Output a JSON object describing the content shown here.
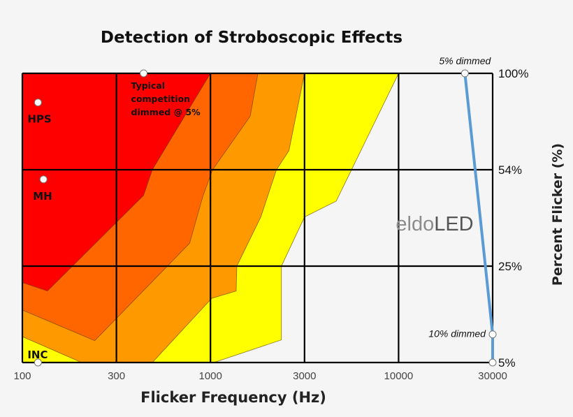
{
  "chart_data": {
    "type": "area",
    "title": "Detection of Stroboscopic Effects",
    "xlabel": "Flicker Frequency (Hz)",
    "ylabel": "Percent Flicker (%)",
    "x_scale": "log",
    "x_ticks": [
      100,
      300,
      1000,
      3000,
      10000,
      30000
    ],
    "x_tick_labels": [
      "100",
      "300",
      "1000",
      "3000",
      "10000",
      "30000"
    ],
    "y_ticks": [
      100,
      54,
      25,
      5
    ],
    "y_tick_labels": [
      "100%",
      "54%",
      "25%",
      "5%"
    ],
    "y_axis_side": "right",
    "xlim": [
      100,
      30000
    ],
    "ylim": [
      5,
      100
    ],
    "grid": true,
    "regions": [
      {
        "color": "#ffff00",
        "points": [
          [
            100,
            100
          ],
          [
            10000,
            100
          ],
          [
            4500,
            42
          ],
          [
            3000,
            37
          ],
          [
            2290,
            25
          ],
          [
            2290,
            7.3
          ],
          [
            1040,
            5
          ],
          [
            100,
            5
          ]
        ]
      },
      {
        "color": "#ff9900",
        "points": [
          [
            100,
            100
          ],
          [
            3000,
            100
          ],
          [
            2500,
            61
          ],
          [
            2160,
            54
          ],
          [
            1800,
            37
          ],
          [
            1360,
            25
          ],
          [
            1350,
            16.5
          ],
          [
            1015,
            14.6
          ],
          [
            475,
            5
          ],
          [
            200,
            5
          ],
          [
            100,
            7.7
          ]
        ]
      },
      {
        "color": "#ff6600",
        "points": [
          [
            100,
            100
          ],
          [
            1740,
            100
          ],
          [
            1590,
            76
          ],
          [
            1025,
            54
          ],
          [
            910,
            44
          ],
          [
            765,
            30
          ],
          [
            233,
            7.2
          ],
          [
            100,
            12
          ]
        ]
      },
      {
        "color": "#ff0000",
        "points": [
          [
            100,
            100
          ],
          [
            1000,
            100
          ],
          [
            475,
            54
          ],
          [
            425,
            44
          ],
          [
            134,
            16.5
          ],
          [
            100,
            19
          ]
        ]
      }
    ],
    "points": [
      {
        "label": "HPS",
        "x": 120,
        "y": 83
      },
      {
        "label": "MH",
        "x": 128,
        "y": 50
      },
      {
        "label": "INC",
        "x": 120,
        "y": 5
      },
      {
        "label": "Typical competition dimmed @ 5%",
        "lines": [
          "Typical",
          "competition",
          "dimmed @ 5%"
        ],
        "x": 425,
        "y": 100
      }
    ],
    "line_series": {
      "color": "#5b9bd5",
      "points": [
        {
          "x": 21700,
          "y": 100,
          "label": "5% dimmed"
        },
        {
          "x": 30000,
          "y": 8,
          "label": "10% dimmed"
        },
        {
          "x": 30000,
          "y": 5,
          "label": ""
        }
      ]
    },
    "watermark": {
      "part1": "eldo",
      "part2": "LED",
      "color1": "#8c8c8c",
      "color2": "#555555"
    }
  }
}
